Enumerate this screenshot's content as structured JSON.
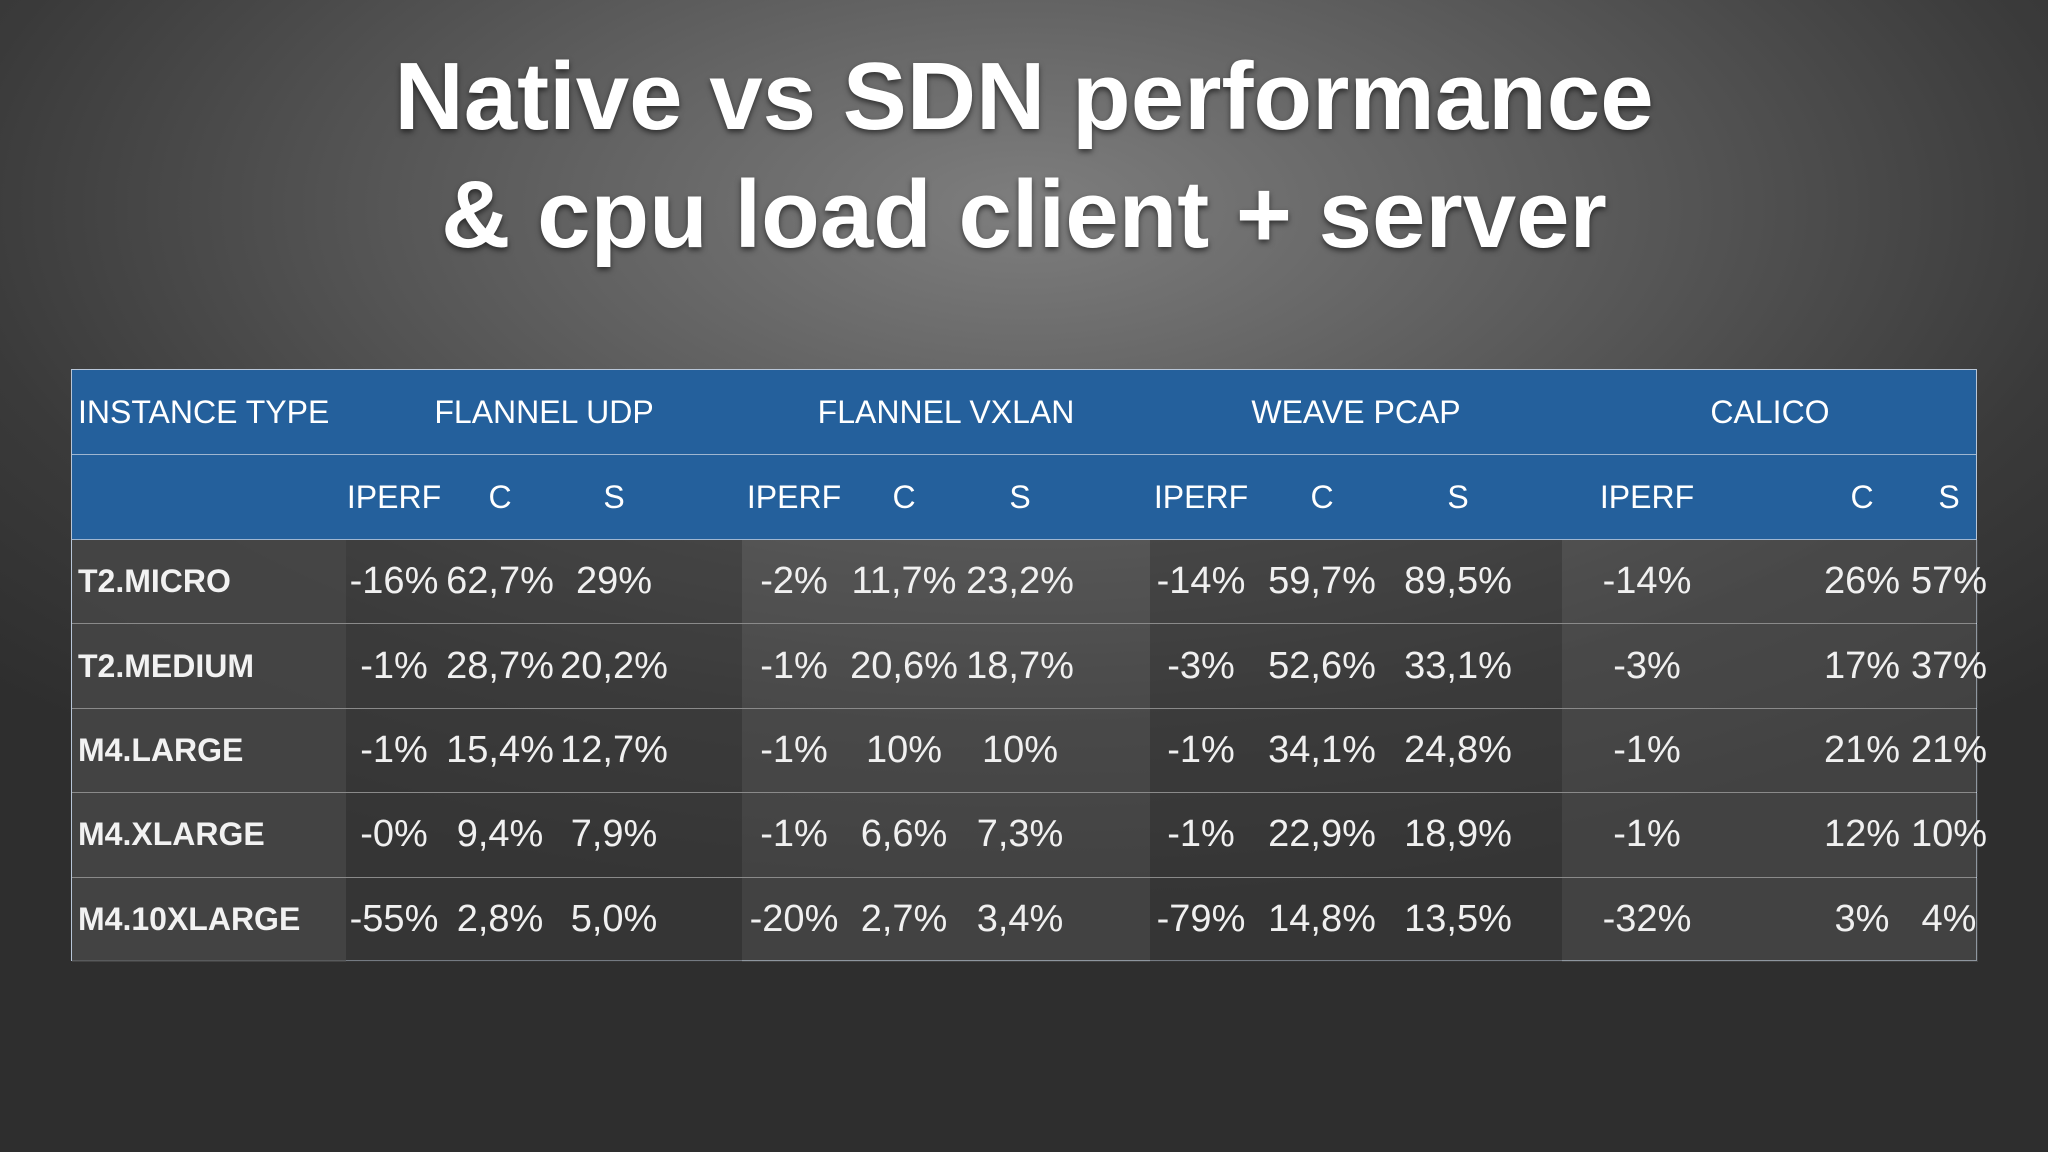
{
  "title": {
    "line1": "Native vs SDN performance",
    "line2": "& cpu load client + server"
  },
  "table": {
    "instance_header": "INSTANCE TYPE",
    "groups": [
      "FLANNEL UDP",
      "FLANNEL VXLAN",
      "WEAVE PCAP",
      "CALICO"
    ],
    "subheaders": [
      "IPERF",
      "C",
      "S"
    ],
    "rows": [
      {
        "label": "T2.MICRO",
        "cells": [
          "-16%",
          "62,7%",
          "29%",
          "-2%",
          "11,7%",
          "23,2%",
          "-14%",
          "59,7%",
          "89,5%",
          "-14%",
          "26%",
          "57%"
        ]
      },
      {
        "label": "T2.MEDIUM",
        "cells": [
          "-1%",
          "28,7%",
          "20,2%",
          "-1%",
          "20,6%",
          "18,7%",
          "-3%",
          "52,6%",
          "33,1%",
          "-3%",
          "17%",
          "37%"
        ]
      },
      {
        "label": "M4.LARGE",
        "cells": [
          "-1%",
          "15,4%",
          "12,7%",
          "-1%",
          "10%",
          "10%",
          "-1%",
          "34,1%",
          "24,8%",
          "-1%",
          "21%",
          "21%"
        ]
      },
      {
        "label": "M4.XLARGE",
        "cells": [
          "-0%",
          "9,4%",
          "7,9%",
          "-1%",
          "6,6%",
          "7,3%",
          "-1%",
          "22,9%",
          "18,9%",
          "-1%",
          "12%",
          "10%"
        ]
      },
      {
        "label": "M4.10XLARGE",
        "cells": [
          "-55%",
          "2,8%",
          "5,0%",
          "-20%",
          "2,7%",
          "3,4%",
          "-79%",
          "14,8%",
          "13,5%",
          "-32%",
          "3%",
          "4%"
        ]
      }
    ]
  },
  "colors": {
    "header_blue": "#24609c",
    "background": "#4a4a4a",
    "text": "#ffffff"
  }
}
